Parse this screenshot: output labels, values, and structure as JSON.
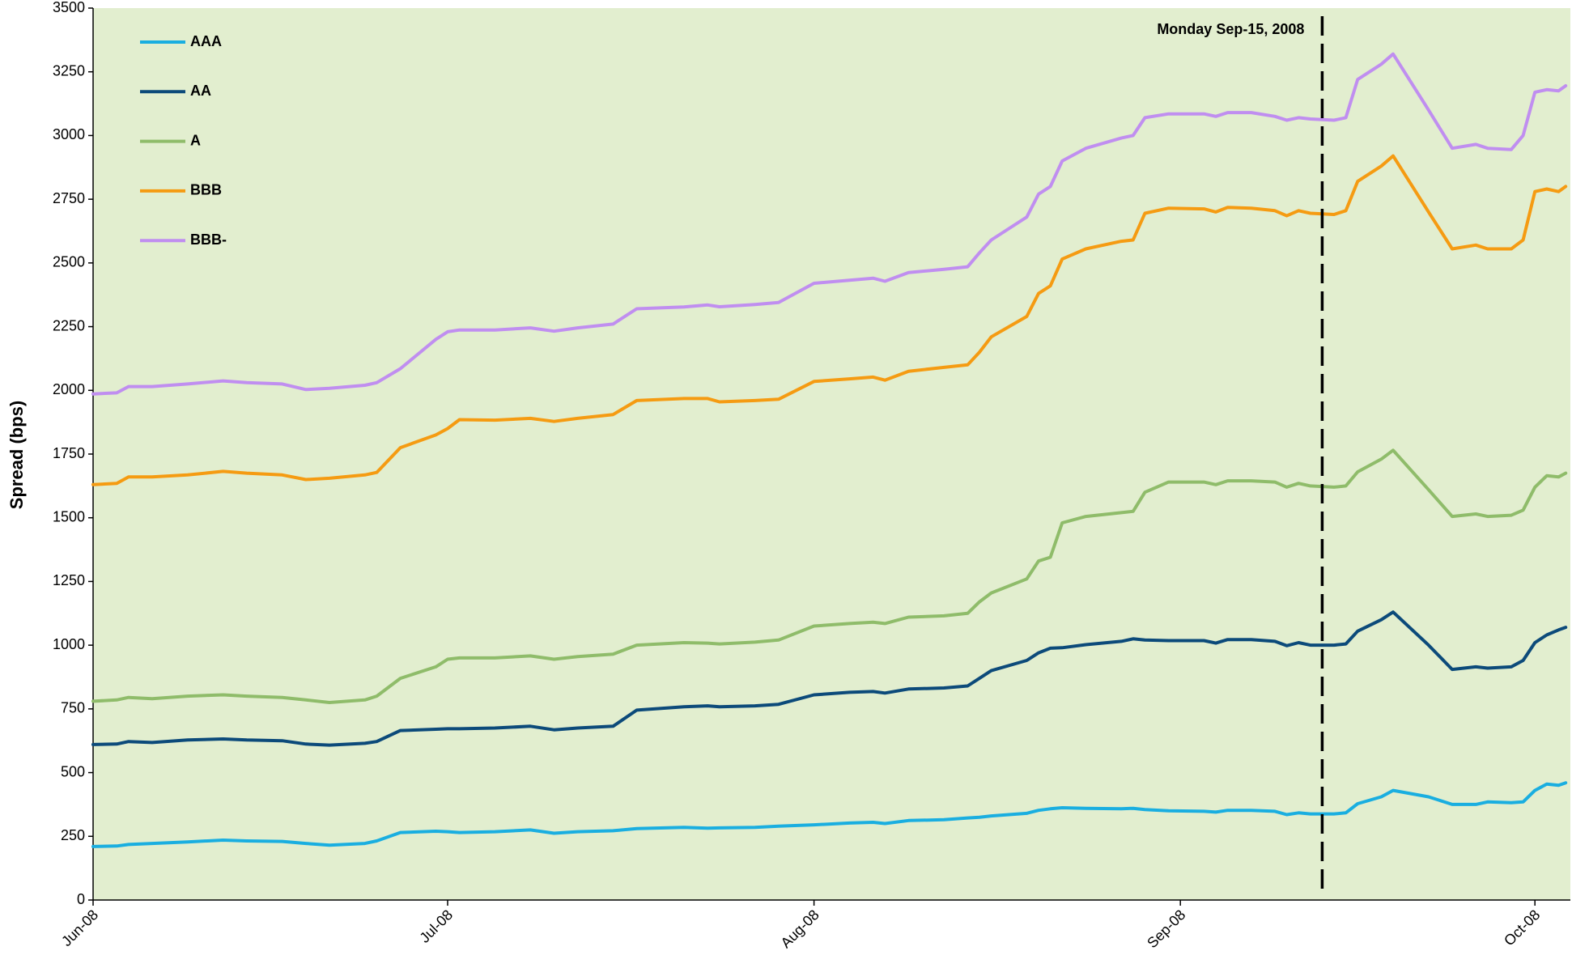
{
  "chart_data": {
    "type": "line",
    "y_label": "Spread (bps)",
    "x": [
      0,
      2,
      3,
      5,
      8,
      11,
      13,
      16,
      18,
      20,
      23,
      24,
      26,
      29,
      30,
      31,
      34,
      37,
      39,
      41,
      44,
      46,
      50,
      52,
      53,
      56,
      58,
      61,
      64,
      66,
      67,
      69,
      72,
      74,
      75,
      76,
      79,
      80,
      81,
      82,
      84,
      87,
      88,
      89,
      91,
      94,
      95,
      96,
      98,
      100,
      101,
      102,
      103,
      105,
      106,
      107,
      109,
      110,
      113,
      115,
      117,
      118,
      120,
      121,
      122,
      123,
      124,
      124.6
    ],
    "xlim": [
      0,
      125
    ],
    "xticks": [
      {
        "value": 0,
        "label": "Jun-08"
      },
      {
        "value": 30,
        "label": "Jul-08"
      },
      {
        "value": 61,
        "label": "Aug-08"
      },
      {
        "value": 92,
        "label": "Sep-08"
      },
      {
        "value": 122,
        "label": "Oct-08"
      }
    ],
    "ylim": [
      0,
      3500
    ],
    "yticks": [
      0,
      250,
      500,
      750,
      1000,
      1250,
      1500,
      1750,
      2000,
      2250,
      2500,
      2750,
      3000,
      3250,
      3500
    ],
    "grid": false,
    "legend": "top-left",
    "annotation": {
      "text": "Monday Sep-15, 2008",
      "x": 104
    },
    "series": [
      {
        "name": "AAA",
        "color": "#1aaee0",
        "values": [
          210,
          212,
          218,
          222,
          228,
          235,
          232,
          230,
          222,
          215,
          222,
          232,
          265,
          270,
          268,
          265,
          268,
          275,
          262,
          268,
          272,
          280,
          285,
          282,
          283,
          285,
          290,
          295,
          302,
          305,
          300,
          312,
          315,
          322,
          325,
          330,
          340,
          352,
          358,
          362,
          360,
          358,
          360,
          355,
          350,
          348,
          345,
          352,
          352,
          348,
          335,
          342,
          338,
          338,
          342,
          378,
          405,
          430,
          405,
          375,
          375,
          385,
          382,
          385,
          430,
          455,
          450,
          460
        ]
      },
      {
        "name": "AA",
        "color": "#0c4a7a",
        "values": [
          610,
          612,
          622,
          618,
          628,
          632,
          628,
          625,
          612,
          608,
          615,
          622,
          665,
          670,
          672,
          672,
          675,
          682,
          668,
          675,
          682,
          745,
          758,
          762,
          758,
          762,
          768,
          805,
          815,
          818,
          812,
          828,
          832,
          840,
          870,
          900,
          940,
          970,
          988,
          990,
          1002,
          1015,
          1025,
          1020,
          1018,
          1018,
          1008,
          1022,
          1022,
          1015,
          998,
          1010,
          1000,
          1000,
          1005,
          1055,
          1100,
          1130,
          1000,
          905,
          915,
          910,
          915,
          940,
          1010,
          1040,
          1060,
          1070
        ]
      },
      {
        "name": "A",
        "color": "#8fbc6a",
        "values": [
          780,
          785,
          795,
          790,
          800,
          805,
          800,
          795,
          785,
          775,
          785,
          800,
          870,
          915,
          945,
          950,
          950,
          958,
          945,
          955,
          965,
          1000,
          1010,
          1008,
          1005,
          1012,
          1020,
          1075,
          1085,
          1090,
          1085,
          1110,
          1115,
          1125,
          1170,
          1205,
          1260,
          1330,
          1345,
          1480,
          1505,
          1520,
          1525,
          1600,
          1640,
          1640,
          1630,
          1645,
          1645,
          1640,
          1620,
          1635,
          1625,
          1620,
          1625,
          1680,
          1730,
          1765,
          1610,
          1505,
          1515,
          1505,
          1510,
          1530,
          1620,
          1665,
          1660,
          1675
        ]
      },
      {
        "name": "BBB",
        "color": "#f59b12",
        "values": [
          1630,
          1635,
          1660,
          1660,
          1668,
          1682,
          1675,
          1668,
          1650,
          1655,
          1668,
          1678,
          1775,
          1825,
          1850,
          1885,
          1883,
          1890,
          1878,
          1890,
          1905,
          1960,
          1968,
          1968,
          1955,
          1960,
          1965,
          2035,
          2045,
          2052,
          2040,
          2075,
          2090,
          2100,
          2150,
          2210,
          2290,
          2380,
          2410,
          2515,
          2555,
          2585,
          2590,
          2695,
          2715,
          2712,
          2700,
          2718,
          2715,
          2705,
          2685,
          2705,
          2695,
          2690,
          2705,
          2820,
          2880,
          2920,
          2700,
          2555,
          2570,
          2555,
          2555,
          2590,
          2780,
          2790,
          2780,
          2800
        ]
      },
      {
        "name": "BBB-",
        "color": "#c08ef0",
        "values": [
          1986,
          1990,
          2015,
          2015,
          2025,
          2037,
          2030,
          2025,
          2003,
          2008,
          2020,
          2030,
          2085,
          2200,
          2230,
          2237,
          2237,
          2245,
          2232,
          2245,
          2260,
          2320,
          2327,
          2335,
          2328,
          2337,
          2345,
          2420,
          2432,
          2440,
          2428,
          2462,
          2475,
          2485,
          2540,
          2590,
          2680,
          2770,
          2800,
          2900,
          2950,
          2990,
          3000,
          3070,
          3085,
          3085,
          3075,
          3090,
          3090,
          3075,
          3060,
          3070,
          3065,
          3060,
          3070,
          3220,
          3280,
          3320,
          3100,
          2950,
          2965,
          2950,
          2945,
          3000,
          3170,
          3180,
          3175,
          3195
        ]
      }
    ]
  }
}
